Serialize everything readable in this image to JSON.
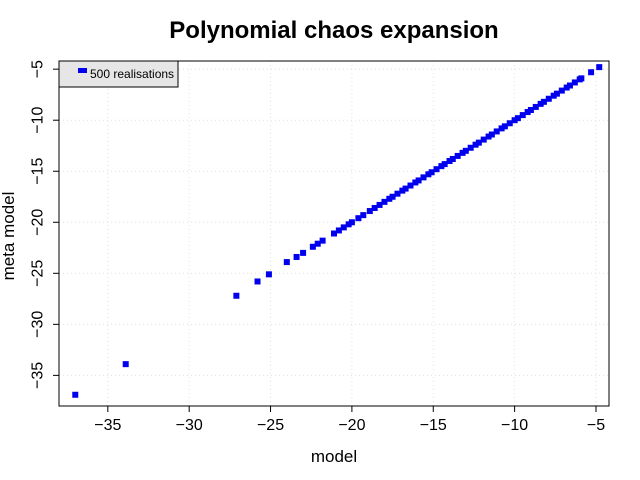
{
  "chart_data": {
    "type": "scatter",
    "title": "Polynomial chaos expansion",
    "xlabel": "model",
    "ylabel": "meta model",
    "xlim": [
      -38.0,
      -4.2
    ],
    "ylim": [
      -38.0,
      -4.2
    ],
    "x_ticks": [
      -35,
      -30,
      -25,
      -20,
      -15,
      -10,
      -5
    ],
    "y_ticks": [
      -35,
      -30,
      -25,
      -20,
      -15,
      -10,
      -5
    ],
    "x_tick_labels": [
      "−35",
      "−30",
      "−25",
      "−20",
      "−15",
      "−10",
      "−5"
    ],
    "y_tick_labels": [
      "−35",
      "−30",
      "−25",
      "−20",
      "−15",
      "−10",
      "−5"
    ],
    "grid": true,
    "legend_position": "top-left",
    "series": [
      {
        "name": "500 realisations",
        "color": "#0000ee",
        "marker": "square",
        "points": [
          [
            -37.0,
            -36.9
          ],
          [
            -33.9,
            -33.9
          ],
          [
            -27.1,
            -27.2
          ],
          [
            -25.8,
            -25.8
          ],
          [
            -25.1,
            -25.1
          ],
          [
            -24.0,
            -23.9
          ],
          [
            -23.4,
            -23.4
          ],
          [
            -23.0,
            -23.0
          ],
          [
            -22.4,
            -22.4
          ],
          [
            -22.1,
            -22.1
          ],
          [
            -21.8,
            -21.8
          ],
          [
            -21.1,
            -21.1
          ],
          [
            -20.8,
            -20.8
          ],
          [
            -20.5,
            -20.5
          ],
          [
            -20.2,
            -20.2
          ],
          [
            -20.0,
            -20.0
          ],
          [
            -19.6,
            -19.6
          ],
          [
            -19.3,
            -19.3
          ],
          [
            -18.9,
            -18.9
          ],
          [
            -18.6,
            -18.6
          ],
          [
            -18.3,
            -18.3
          ],
          [
            -18.0,
            -18.0
          ],
          [
            -17.7,
            -17.7
          ],
          [
            -17.5,
            -17.5
          ],
          [
            -17.2,
            -17.2
          ],
          [
            -16.9,
            -16.9
          ],
          [
            -16.7,
            -16.7
          ],
          [
            -16.4,
            -16.4
          ],
          [
            -16.1,
            -16.1
          ],
          [
            -15.9,
            -15.9
          ],
          [
            -15.6,
            -15.6
          ],
          [
            -15.3,
            -15.3
          ],
          [
            -15.1,
            -15.1
          ],
          [
            -14.8,
            -14.8
          ],
          [
            -14.5,
            -14.5
          ],
          [
            -14.3,
            -14.3
          ],
          [
            -14.0,
            -14.0
          ],
          [
            -13.8,
            -13.8
          ],
          [
            -13.5,
            -13.5
          ],
          [
            -13.2,
            -13.2
          ],
          [
            -13.0,
            -13.0
          ],
          [
            -12.7,
            -12.7
          ],
          [
            -12.4,
            -12.4
          ],
          [
            -12.2,
            -12.2
          ],
          [
            -11.9,
            -11.9
          ],
          [
            -11.6,
            -11.6
          ],
          [
            -11.4,
            -11.4
          ],
          [
            -11.1,
            -11.1
          ],
          [
            -10.8,
            -10.8
          ],
          [
            -10.6,
            -10.6
          ],
          [
            -10.3,
            -10.3
          ],
          [
            -10.0,
            -10.0
          ],
          [
            -9.8,
            -9.8
          ],
          [
            -9.5,
            -9.5
          ],
          [
            -9.2,
            -9.2
          ],
          [
            -9.0,
            -9.0
          ],
          [
            -8.7,
            -8.7
          ],
          [
            -8.4,
            -8.4
          ],
          [
            -8.2,
            -8.2
          ],
          [
            -7.9,
            -7.9
          ],
          [
            -7.6,
            -7.6
          ],
          [
            -7.4,
            -7.4
          ],
          [
            -7.1,
            -7.1
          ],
          [
            -6.8,
            -6.8
          ],
          [
            -6.6,
            -6.6
          ],
          [
            -6.3,
            -6.3
          ],
          [
            -6.0,
            -6.0
          ],
          [
            -5.9,
            -5.9
          ],
          [
            -5.3,
            -5.3
          ],
          [
            -4.8,
            -4.8
          ]
        ]
      }
    ]
  }
}
